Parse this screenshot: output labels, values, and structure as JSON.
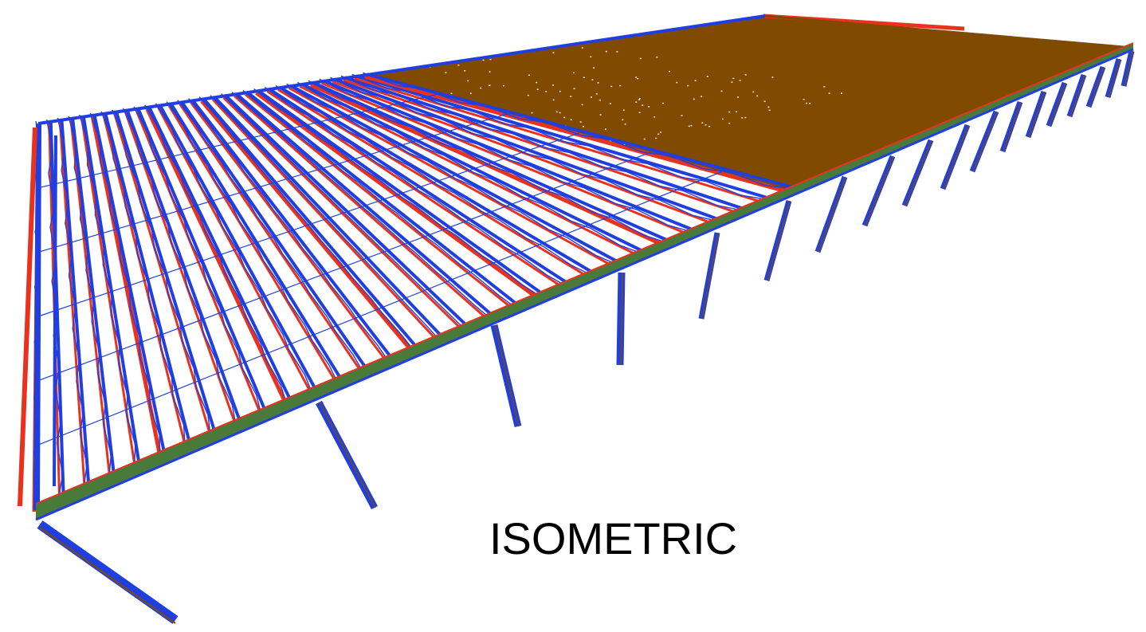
{
  "view": {
    "label": "ISOMETRIC"
  },
  "colors": {
    "background": "#ffffff",
    "deck": "#804a00",
    "joist": "#1f3fe0",
    "chord_red": "#e8321e",
    "girder_green": "#4a7a3a",
    "column": "#1f3fe0",
    "text": "#000000"
  }
}
